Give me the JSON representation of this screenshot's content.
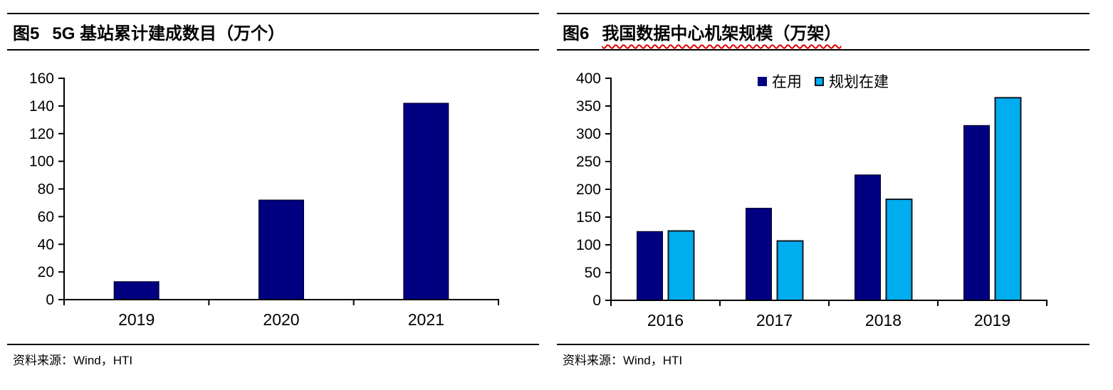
{
  "panels": [
    {
      "title_prefix": "图5",
      "title_main": "5G 基站累计建成数目（万个）",
      "title_underline": false,
      "source": "资料来源：Wind，HTI"
    },
    {
      "title_prefix": "图6",
      "title_main": "我国数据中心机架规模（万架）",
      "title_underline": true,
      "source": "资料来源：Wind，HTI"
    }
  ],
  "chart_data": [
    {
      "type": "bar",
      "title": "图5 5G 基站累计建成数目（万个）",
      "categories": [
        "2019",
        "2020",
        "2021"
      ],
      "values": [
        13,
        72,
        142
      ],
      "xlabel": "",
      "ylabel": "",
      "ylim": [
        0,
        160
      ],
      "ytick_step": 20,
      "yticks": [
        0,
        20,
        40,
        60,
        80,
        100,
        120,
        140,
        160
      ],
      "grid": false,
      "legend": null,
      "bar_color": "#000080"
    },
    {
      "type": "bar",
      "title": "图6 我国数据中心机架规模（万架）",
      "categories": [
        "2016",
        "2017",
        "2018",
        "2019"
      ],
      "series": [
        {
          "name": "在用",
          "color": "#000080",
          "values": [
            124,
            166,
            226,
            315
          ]
        },
        {
          "name": "规划在建",
          "color": "#00AEEF",
          "values": [
            125,
            107,
            182,
            365
          ]
        }
      ],
      "xlabel": "",
      "ylabel": "",
      "ylim": [
        0,
        400
      ],
      "ytick_step": 50,
      "yticks": [
        0,
        50,
        100,
        150,
        200,
        250,
        300,
        350,
        400
      ],
      "grid": false,
      "legend_position": "top-center"
    }
  ],
  "colors": {
    "axis": "#000000",
    "navy": "#000080",
    "cyan": "#00AEEF",
    "navy_border": "#000020",
    "cyan_border": "#101826",
    "underline_red": "#E00000"
  }
}
